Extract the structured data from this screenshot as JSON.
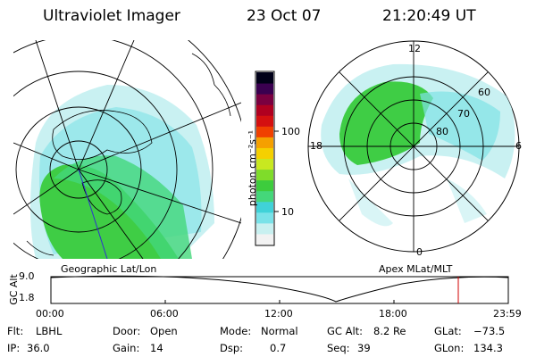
{
  "header": {
    "title": "Ultraviolet Imager",
    "date": "23 Oct 07",
    "time": "21:20:49 UT"
  },
  "colorbar": {
    "unit_label": "photon cm⁻²s⁻¹",
    "ticks": [
      "100",
      "10"
    ],
    "colors": [
      "#f2f2f2",
      "#c8f0f0",
      "#79e2e8",
      "#40d2d8",
      "#44d77a",
      "#3dcc3d",
      "#7fdc2a",
      "#c8e820",
      "#f5d000",
      "#f5a000",
      "#f04000",
      "#d41010",
      "#b00020",
      "#7a0040",
      "#3a0050",
      "#000018"
    ]
  },
  "panels": {
    "left_label": "Geographic Lat/Lon",
    "right_label": "Apex MLat/MLT",
    "right_mlt": {
      "top": "12",
      "left": "18",
      "right": "6",
      "bottom": "0"
    },
    "right_lat": [
      "60",
      "70",
      "80"
    ]
  },
  "altitude_plot": {
    "ylabel": "GC Alt",
    "yticks": [
      "9.0",
      "1.8"
    ],
    "xticks": [
      "00:00",
      "06:00",
      "12:00",
      "18:00",
      "23:59"
    ]
  },
  "info": {
    "flt_label": "Flt:",
    "flt_value": "LBHL",
    "ip_label": "IP:",
    "ip_value": "36.0",
    "door_label": "Door:",
    "door_value": "Open",
    "gain_label": "Gain:",
    "gain_value": "14",
    "mode_label": "Mode:",
    "mode_value": "Normal",
    "dsp_label": "Dsp:",
    "dsp_value": "0.7",
    "gcalt_label": "GC Alt:",
    "gcalt_value": "8.2 Re",
    "seq_label": "Seq:",
    "seq_value": "39",
    "glat_label": "GLat:",
    "glat_value": "−73.5",
    "glon_label": "GLon:",
    "glon_value": "134.3"
  }
}
